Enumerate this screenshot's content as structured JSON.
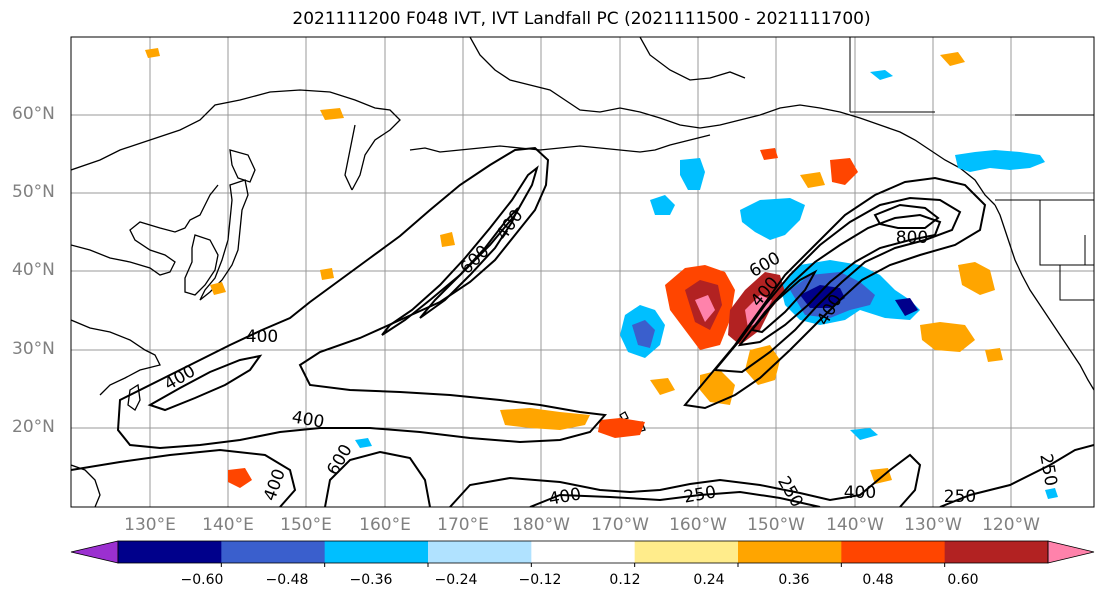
{
  "title": "2021111200 F048 IVT, IVT Landfall PC (2021111500 - 2021111700)",
  "lat_labels": [
    "60°N",
    "50°N",
    "40°N",
    "30°N",
    "20°N"
  ],
  "lon_labels": [
    "130°E",
    "140°E",
    "150°E",
    "160°E",
    "170°E",
    "180°W",
    "170°W",
    "160°W",
    "150°W",
    "140°W",
    "130°W",
    "120°W"
  ],
  "contour_labels": [
    "400",
    "600",
    "400",
    "400",
    "400",
    "600",
    "400",
    "250",
    "250",
    "400",
    "800",
    "400",
    "250",
    "400",
    "400",
    "250",
    "600"
  ],
  "colorbar": {
    "colors": [
      "#9b30d0",
      "#00008b",
      "#3a5fcd",
      "#00bfff",
      "#b0e2ff",
      "#ffffff",
      "#ffec8b",
      "#ffa500",
      "#ff4500",
      "#b22222",
      "#ff82ab"
    ],
    "tick_labels": [
      "−0.60",
      "−0.48",
      "−0.36",
      "−0.24",
      "−0.12",
      "0.12",
      "0.24",
      "0.36",
      "0.48",
      "0.60"
    ]
  },
  "fill_colors": {
    "neg_light": "#b0e2ff",
    "neg_mid": "#00bfff",
    "neg_dark": "#3a5fcd",
    "neg_darker": "#00008b",
    "pos_light": "#ffec8b",
    "pos_mid": "#ffa500",
    "pos_dark": "#ff4500",
    "pos_darker": "#b22222",
    "pos_max": "#ff82ab"
  }
}
